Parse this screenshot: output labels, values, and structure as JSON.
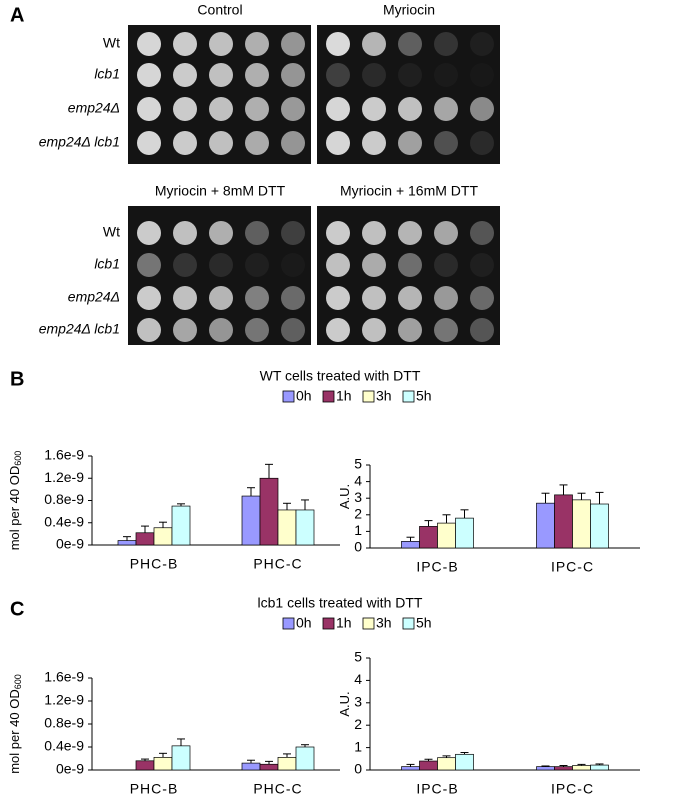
{
  "panel_a": {
    "label": "A",
    "groups": [
      {
        "titles": [
          "Control",
          "Myriocin"
        ],
        "rows": [
          "Wt",
          "lcb1",
          "emp24Δ",
          "emp24Δ lcb1"
        ]
      },
      {
        "titles": [
          "Myriocin + 8mM DTT",
          "Myriocin + 16mM DTT"
        ],
        "rows": [
          "Wt",
          "lcb1",
          "emp24Δ",
          "emp24Δ lcb1"
        ]
      }
    ]
  },
  "chart_data": [
    {
      "type": "bar",
      "label": "B",
      "title": "WT cells treated with DTT",
      "legend": [
        {
          "name": "0h",
          "color": "#9999ff"
        },
        {
          "name": "1h",
          "color": "#993366"
        },
        {
          "name": "3h",
          "color": "#ffffcc"
        },
        {
          "name": "5h",
          "color": "#ccffff"
        }
      ],
      "subplots": [
        {
          "ylabel": {
            "text": "mol per 40 OD",
            "subscript": "600"
          },
          "categories": [
            "PHC-B",
            "PHC-C"
          ],
          "ylim": [
            0,
            1.6e-09
          ],
          "yticks": [
            {
              "value": 0,
              "label": "0e-9"
            },
            {
              "value": 4e-10,
              "label": "0.4e-9"
            },
            {
              "value": 8e-10,
              "label": "0.8e-9"
            },
            {
              "value": 1.2e-09,
              "label": "1.2e-9"
            },
            {
              "value": 1.6e-09,
              "label": "1.6e-9"
            }
          ],
          "series": [
            {
              "values": [
                8e-11,
                8.8e-10
              ],
              "errors": [
                7e-11,
                1.5e-10
              ]
            },
            {
              "values": [
                2.2e-10,
                1.2e-09
              ],
              "errors": [
                1.2e-10,
                2.5e-10
              ]
            },
            {
              "values": [
                3.1e-10,
                6.3e-10
              ],
              "errors": [
                1e-10,
                1.2e-10
              ]
            },
            {
              "values": [
                7e-10,
                6.3e-10
              ],
              "errors": [
                4e-11,
                1.8e-10
              ]
            }
          ]
        },
        {
          "ylabel": {
            "text": "A.U."
          },
          "categories": [
            "IPC-B",
            "IPC-C"
          ],
          "ylim": [
            0,
            5
          ],
          "yticks": [
            0,
            1,
            2,
            3,
            4,
            5
          ],
          "series": [
            {
              "values": [
                0.4,
                2.7
              ],
              "errors": [
                0.25,
                0.6
              ]
            },
            {
              "values": [
                1.3,
                3.2
              ],
              "errors": [
                0.35,
                0.6
              ]
            },
            {
              "values": [
                1.5,
                2.9
              ],
              "errors": [
                0.5,
                0.4
              ]
            },
            {
              "values": [
                1.8,
                2.65
              ],
              "errors": [
                0.5,
                0.7
              ]
            }
          ]
        }
      ]
    },
    {
      "type": "bar",
      "label": "C",
      "title": "lcb1 cells treated with DTT",
      "legend": [
        {
          "name": "0h",
          "color": "#9999ff"
        },
        {
          "name": "1h",
          "color": "#993366"
        },
        {
          "name": "3h",
          "color": "#ffffcc"
        },
        {
          "name": "5h",
          "color": "#ccffff"
        }
      ],
      "subplots": [
        {
          "ylabel": {
            "text": "mol per 40 OD",
            "subscript": "600"
          },
          "categories": [
            "PHC-B",
            "PHC-C"
          ],
          "ylim": [
            0,
            1.6e-09
          ],
          "yticks": [
            {
              "value": 0,
              "label": "0e-9"
            },
            {
              "value": 4e-10,
              "label": "0.4e-9"
            },
            {
              "value": 8e-10,
              "label": "0.8e-9"
            },
            {
              "value": 1.2e-09,
              "label": "1.2e-9"
            },
            {
              "value": 1.6e-09,
              "label": "1.6e-9"
            }
          ],
          "series": [
            {
              "values": [
                0,
                1.2e-10
              ],
              "errors": [
                0,
                5e-11
              ]
            },
            {
              "values": [
                1.6e-10,
                1e-10
              ],
              "errors": [
                3e-11,
                5e-11
              ]
            },
            {
              "values": [
                2.2e-10,
                2.2e-10
              ],
              "errors": [
                7e-11,
                6e-11
              ]
            },
            {
              "values": [
                4.2e-10,
                4e-10
              ],
              "errors": [
                1.2e-10,
                4e-11
              ]
            }
          ]
        },
        {
          "ylabel": {
            "text": "A.U."
          },
          "categories": [
            "IPC-B",
            "IPC-C"
          ],
          "ylim": [
            0,
            5
          ],
          "yticks": [
            0,
            1,
            2,
            3,
            4,
            5
          ],
          "series": [
            {
              "values": [
                0.15,
                0.15
              ],
              "errors": [
                0.1,
                0.03
              ]
            },
            {
              "values": [
                0.4,
                0.15
              ],
              "errors": [
                0.08,
                0.05
              ]
            },
            {
              "values": [
                0.55,
                0.2
              ],
              "errors": [
                0.08,
                0.05
              ]
            },
            {
              "values": [
                0.7,
                0.22
              ],
              "errors": [
                0.08,
                0.05
              ]
            }
          ]
        }
      ]
    }
  ]
}
